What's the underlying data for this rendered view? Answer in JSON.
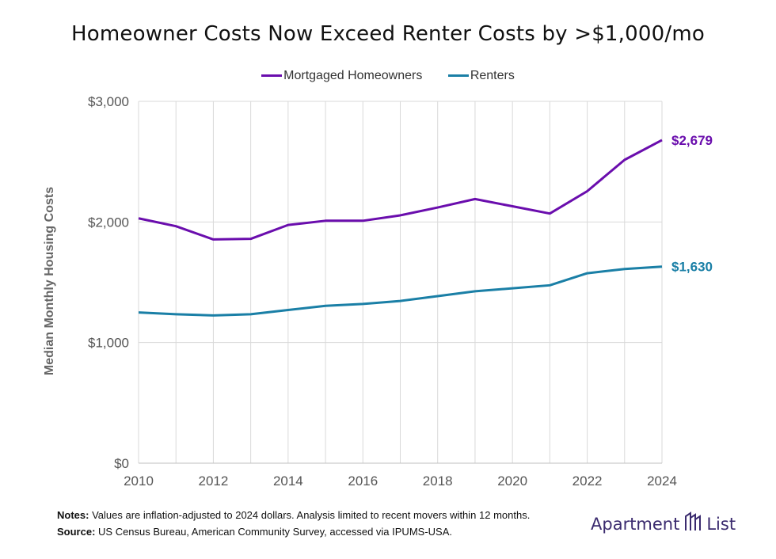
{
  "chart_data": {
    "type": "line",
    "title": "Homeowner Costs Now Exceed Renter Costs by >$1,000/mo",
    "xlabel": "",
    "ylabel": "Median Monthly Housing Costs",
    "x": [
      2010,
      2011,
      2012,
      2013,
      2014,
      2015,
      2016,
      2017,
      2018,
      2019,
      2020,
      2021,
      2022,
      2023,
      2024
    ],
    "x_ticks": [
      "2010",
      "2012",
      "2014",
      "2016",
      "2018",
      "2020",
      "2022",
      "2024"
    ],
    "y_ticks": [
      "$0",
      "$1,000",
      "$2,000",
      "$3,000"
    ],
    "ylim": [
      0,
      3000
    ],
    "xlim": [
      2010,
      2024
    ],
    "grid": true,
    "legend_position": "top",
    "series": [
      {
        "name": "Mortgaged Homeowners",
        "color": "#6a0dad",
        "values": [
          2030,
          1965,
          1855,
          1860,
          1975,
          2010,
          2010,
          2055,
          2120,
          2190,
          2130,
          2070,
          2255,
          2515,
          2679
        ],
        "end_label": "$2,679"
      },
      {
        "name": "Renters",
        "color": "#1a7fa6",
        "values": [
          1250,
          1235,
          1225,
          1235,
          1270,
          1305,
          1320,
          1345,
          1385,
          1425,
          1450,
          1475,
          1575,
          1610,
          1630
        ],
        "end_label": "$1,630"
      }
    ]
  },
  "notes": {
    "notes_label": "Notes:",
    "notes_text": " Values are inflation-adjusted to 2024 dollars. Analysis limited to recent movers within 12 months.",
    "source_label": "Source:",
    "source_text": " US Census Bureau, American Community Survey, accessed via IPUMS-USA."
  },
  "brand": {
    "left": "Apartment",
    "right": "List",
    "logo_icon": "building-logo-icon"
  }
}
